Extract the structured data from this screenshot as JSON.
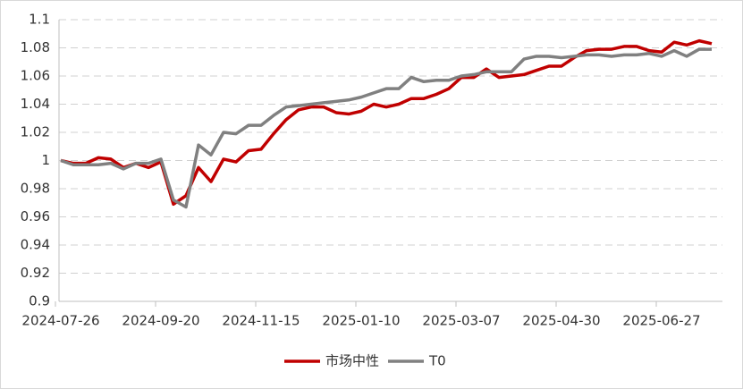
{
  "chart_data": {
    "type": "line",
    "categories": [
      "2024-07-26",
      null,
      null,
      null,
      null,
      null,
      null,
      null,
      "2024-09-20",
      null,
      null,
      null,
      null,
      null,
      null,
      null,
      "2024-11-15",
      null,
      null,
      null,
      null,
      null,
      null,
      null,
      "2025-01-10",
      null,
      null,
      null,
      null,
      null,
      null,
      null,
      "2025-03-07",
      null,
      null,
      null,
      null,
      null,
      null,
      null,
      "2025-04-30",
      null,
      null,
      null,
      null,
      null,
      null,
      null,
      "2025-06-27",
      null,
      null,
      null,
      null
    ],
    "series": [
      {
        "name": "市场中性",
        "color": "#c00000",
        "values": [
          1.0,
          0.998,
          0.998,
          1.002,
          1.001,
          0.995,
          0.998,
          0.995,
          0.999,
          0.969,
          0.975,
          0.995,
          0.985,
          1.001,
          0.999,
          1.007,
          1.008,
          1.019,
          1.029,
          1.036,
          1.038,
          1.038,
          1.034,
          1.033,
          1.035,
          1.04,
          1.038,
          1.04,
          1.044,
          1.044,
          1.047,
          1.051,
          1.059,
          1.059,
          1.065,
          1.059,
          1.06,
          1.061,
          1.064,
          1.067,
          1.067,
          1.073,
          1.078,
          1.079,
          1.079,
          1.081,
          1.081,
          1.078,
          1.077,
          1.084,
          1.082,
          1.085,
          1.083
        ]
      },
      {
        "name": "T0",
        "color": "#808080",
        "values": [
          1.0,
          0.997,
          0.997,
          0.997,
          0.998,
          0.994,
          0.998,
          0.998,
          1.001,
          0.972,
          0.967,
          1.011,
          1.004,
          1.02,
          1.019,
          1.025,
          1.025,
          1.032,
          1.038,
          1.039,
          1.04,
          1.041,
          1.042,
          1.043,
          1.045,
          1.048,
          1.051,
          1.051,
          1.059,
          1.056,
          1.057,
          1.057,
          1.06,
          1.061,
          1.063,
          1.063,
          1.063,
          1.072,
          1.074,
          1.074,
          1.073,
          1.074,
          1.075,
          1.075,
          1.074,
          1.075,
          1.075,
          1.076,
          1.074,
          1.078,
          1.074,
          1.079,
          1.079
        ]
      }
    ],
    "ylim": [
      0.9,
      1.1
    ],
    "yticks": [
      0.9,
      0.92,
      0.94,
      0.96,
      0.98,
      1,
      1.02,
      1.04,
      1.06,
      1.08,
      1.1
    ],
    "grid": true,
    "legend": "bottom"
  }
}
